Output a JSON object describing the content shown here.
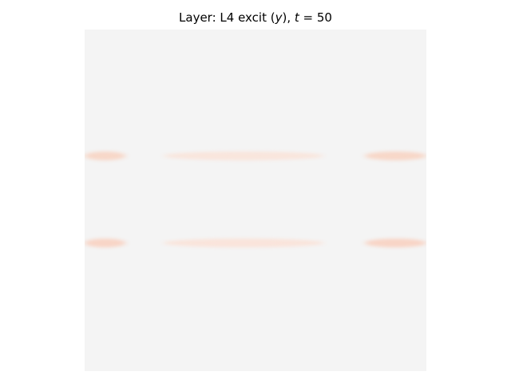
{
  "chart_data": {
    "type": "heatmap",
    "title_prefix": "Layer: L4 excit (",
    "title_var": "y",
    "title_mid": "), ",
    "title_time_var": "t",
    "title_eq": " = ",
    "title_time_value": "50",
    "xlabel": "",
    "ylabel": "",
    "axes_visible": false,
    "grid": false,
    "colorbar": false,
    "colormap": {
      "background": "#f4f4f4",
      "activity": "#fbe0d4",
      "activity_strong": "#f8d2c1"
    },
    "bands": [
      {
        "row_fraction": 0.37,
        "segments": [
          {
            "x_start": 0.0,
            "x_end": 0.12,
            "intensity": 0.85
          },
          {
            "x_start": 0.23,
            "x_end": 0.7,
            "intensity": 0.75
          },
          {
            "x_start": 0.82,
            "x_end": 1.0,
            "intensity": 0.85
          }
        ]
      },
      {
        "row_fraction": 0.625,
        "segments": [
          {
            "x_start": 0.0,
            "x_end": 0.12,
            "intensity": 0.9
          },
          {
            "x_start": 0.23,
            "x_end": 0.7,
            "intensity": 0.8
          },
          {
            "x_start": 0.82,
            "x_end": 1.0,
            "intensity": 0.9
          }
        ]
      }
    ]
  }
}
